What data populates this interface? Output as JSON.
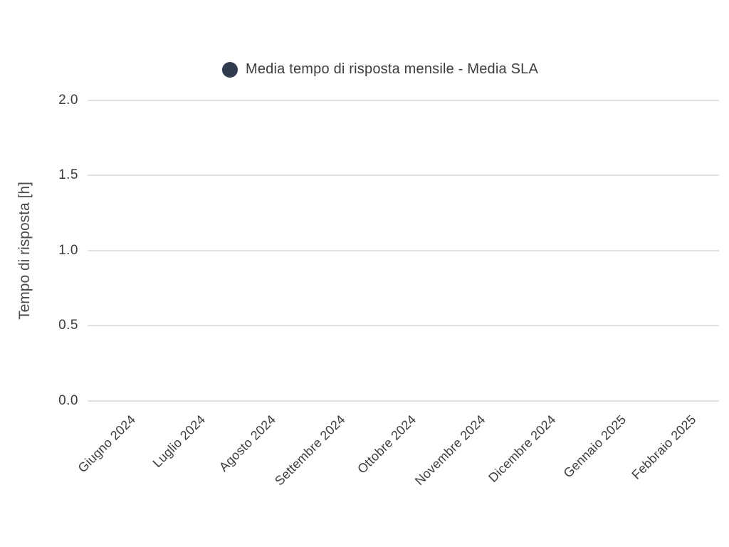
{
  "chart_data": {
    "type": "line",
    "title": "",
    "legend": {
      "label": "Media tempo di risposta mensile - Media SLA",
      "marker_color": "#313b50",
      "position": "top-center"
    },
    "categories": [
      "Giugno 2024",
      "Luglio 2024",
      "Agosto 2024",
      "Settembre 2024",
      "Ottobre 2024",
      "Novembre 2024",
      "Dicembre 2024",
      "Gennaio 2025",
      "Febbraio 2025"
    ],
    "series": [
      {
        "name": "Media tempo di risposta mensile - Media SLA",
        "values": []
      }
    ],
    "xlabel": "",
    "ylabel": "Tempo di risposta [h]",
    "yticks": [
      "2.0",
      "1.5",
      "1.0",
      "0.5",
      "0.0"
    ],
    "ylim": [
      0.0,
      2.0
    ],
    "grid": true,
    "plot_empty": true
  },
  "colors": {
    "background": "#ffffff",
    "gridline": "#e0e0e0",
    "tick_text": "#3d3d3d",
    "axis_title_text": "#4a4a4a",
    "legend_marker": "#313b50"
  }
}
